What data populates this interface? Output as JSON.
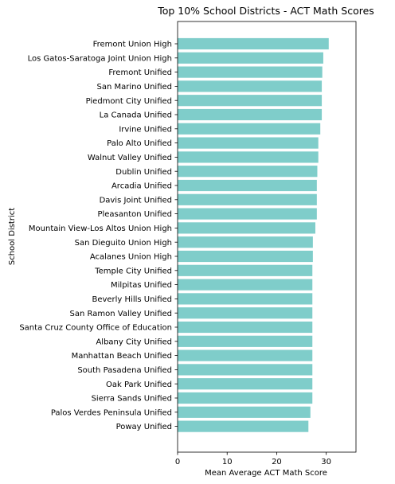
{
  "chart_data": {
    "type": "bar",
    "orientation": "horizontal",
    "title": "Top 10% School Districts - ACT Math Scores",
    "xlabel": "Mean Average ACT Math Score",
    "ylabel": "School District",
    "xlim": [
      0,
      36
    ],
    "xticks": [
      0,
      10,
      20,
      30
    ],
    "grid": false,
    "bar_color": "#7fcdca",
    "categories": [
      "Fremont Union High",
      "Los Gatos-Saratoga Joint Union High",
      "Fremont Unified",
      "San Marino Unified",
      "Piedmont City Unified",
      "La Canada Unified",
      "Irvine Unified",
      "Palo Alto Unified",
      "Walnut Valley Unified",
      "Dublin Unified",
      "Arcadia Unified",
      "Davis Joint Unified",
      "Pleasanton Unified",
      "Mountain View-Los Altos Union High",
      "San Dieguito Union High",
      "Acalanes Union High",
      "Temple City Unified",
      "Milpitas Unified",
      "Beverly Hills Unified",
      "San Ramon Valley Unified",
      "Santa Cruz County Office of Education",
      "Albany City Unified",
      "Manhattan Beach Unified",
      "South Pasadena Unified",
      "Oak Park Unified",
      "Sierra Sands Unified",
      "Palos Verdes Peninsula Unified",
      "Poway Unified"
    ],
    "values": [
      30.5,
      29.4,
      29.2,
      29.1,
      29.1,
      29.1,
      28.8,
      28.4,
      28.4,
      28.2,
      28.1,
      28.1,
      28.1,
      27.8,
      27.3,
      27.3,
      27.2,
      27.2,
      27.2,
      27.2,
      27.2,
      27.2,
      27.2,
      27.2,
      27.2,
      27.2,
      26.8,
      26.4
    ]
  }
}
